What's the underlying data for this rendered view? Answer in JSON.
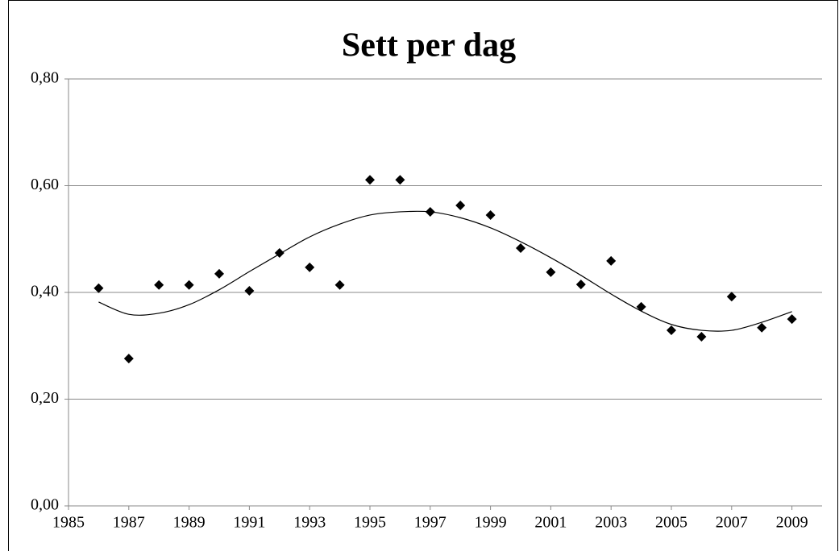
{
  "chart_data": {
    "type": "scatter",
    "title": "Sett per dag",
    "series": [
      {
        "name": "Sett per dag",
        "color": "#000000",
        "marker": "diamond",
        "x": [
          1986,
          1987,
          1988,
          1989,
          1990,
          1991,
          1992,
          1993,
          1994,
          1995,
          1996,
          1997,
          1998,
          1999,
          2000,
          2001,
          2002,
          2003,
          2004,
          2005,
          2006,
          2007,
          2008,
          2009
        ],
        "values": [
          0.408,
          0.276,
          0.414,
          0.414,
          0.435,
          0.403,
          0.474,
          0.447,
          0.414,
          0.611,
          0.611,
          0.551,
          0.563,
          0.545,
          0.483,
          0.438,
          0.415,
          0.459,
          0.373,
          0.329,
          0.317,
          0.392,
          0.334,
          0.35
        ]
      },
      {
        "type": "line",
        "color": "#000000",
        "x": [
          1986,
          1987,
          1988,
          1989,
          1990,
          1991,
          1992,
          1993,
          1994,
          1995,
          1996,
          1997,
          1998,
          1999,
          2000,
          2001,
          2002,
          2003,
          2004,
          2005,
          2006,
          2007,
          2008,
          2009
        ],
        "values": [
          0.382,
          0.359,
          0.361,
          0.377,
          0.405,
          0.439,
          0.472,
          0.504,
          0.528,
          0.545,
          0.551,
          0.551,
          0.54,
          0.521,
          0.495,
          0.465,
          0.432,
          0.397,
          0.365,
          0.34,
          0.329,
          0.329,
          0.344,
          0.364
        ]
      }
    ],
    "xlim": [
      1985,
      2010
    ],
    "xticks": [
      1985,
      1987,
      1989,
      1991,
      1993,
      1995,
      1997,
      1999,
      2001,
      2003,
      2005,
      2007,
      2009
    ],
    "ylim": [
      0,
      0.8
    ],
    "yticks": [
      {
        "value": 0,
        "label": "0,00"
      },
      {
        "value": 0.2,
        "label": "0,20"
      },
      {
        "value": 0.4,
        "label": "0,40"
      },
      {
        "value": 0.6,
        "label": "0,60"
      },
      {
        "value": 0.8,
        "label": "0,80"
      }
    ],
    "grid": true
  }
}
